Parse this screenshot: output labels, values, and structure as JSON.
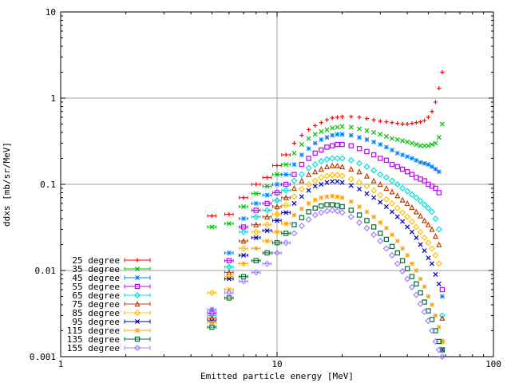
{
  "chart_data": {
    "type": "scatter",
    "title": "",
    "xlabel": "Emitted particle energy [MeV]",
    "ylabel": "ddxs [mb/sr/MeV]",
    "xscale": "log",
    "yscale": "log",
    "xlim": [
      1,
      100
    ],
    "ylim": [
      0.001,
      10
    ],
    "xticks": [
      1,
      10,
      100
    ],
    "xtick_labels": [
      "1",
      "10",
      "100"
    ],
    "yticks": [
      0.001,
      0.01,
      0.1,
      1,
      10
    ],
    "ytick_labels": [
      "0.001",
      "0.01",
      "0.1",
      "1",
      "10"
    ],
    "grid": true,
    "legend_position": "bottom-left",
    "x": [
      5.0,
      6.0,
      7.0,
      8.0,
      9.0,
      10.0,
      11.0,
      12.0,
      13.0,
      14.0,
      15.0,
      16.0,
      17.0,
      18.0,
      19.0,
      20.0,
      22.0,
      24.0,
      26.0,
      28.0,
      30.0,
      32.0,
      34.0,
      36.0,
      38.0,
      40.0,
      42.0,
      44.0,
      46.0,
      48.0,
      50.0,
      52.0,
      54.0,
      56.0,
      58.0
    ],
    "series": [
      {
        "name": "25 degree",
        "color": "#ff0000",
        "marker": "plus",
        "values": [
          0.043,
          0.045,
          0.07,
          0.1,
          0.12,
          0.165,
          0.22,
          0.3,
          0.37,
          0.43,
          0.48,
          0.52,
          0.56,
          0.59,
          0.6,
          0.61,
          0.61,
          0.6,
          0.58,
          0.56,
          0.54,
          0.53,
          0.52,
          0.51,
          0.5,
          0.5,
          0.51,
          0.52,
          0.53,
          0.55,
          0.6,
          0.7,
          0.9,
          1.3,
          2.0
        ]
      },
      {
        "name": "35 degree",
        "color": "#00c000",
        "marker": "cross",
        "values": [
          0.032,
          0.035,
          0.055,
          0.078,
          0.095,
          0.13,
          0.17,
          0.23,
          0.29,
          0.34,
          0.38,
          0.41,
          0.43,
          0.45,
          0.46,
          0.47,
          0.46,
          0.44,
          0.42,
          0.4,
          0.38,
          0.36,
          0.34,
          0.33,
          0.32,
          0.31,
          0.3,
          0.29,
          0.28,
          0.28,
          0.28,
          0.29,
          0.3,
          0.35,
          0.5
        ]
      },
      {
        "name": "45 degree",
        "color": "#0080ff",
        "marker": "asterisk",
        "values": [
          0.0035,
          0.016,
          0.04,
          0.06,
          0.075,
          0.1,
          0.13,
          0.17,
          0.22,
          0.26,
          0.3,
          0.33,
          0.35,
          0.37,
          0.38,
          0.38,
          0.37,
          0.35,
          0.33,
          0.31,
          0.29,
          0.27,
          0.25,
          0.23,
          0.22,
          0.21,
          0.2,
          0.19,
          0.18,
          0.175,
          0.17,
          0.16,
          0.15,
          0.14,
          0.005
        ]
      },
      {
        "name": "55 degree",
        "color": "#c000ff",
        "marker": "square",
        "values": [
          0.0032,
          0.013,
          0.032,
          0.05,
          0.06,
          0.08,
          0.1,
          0.13,
          0.17,
          0.2,
          0.23,
          0.25,
          0.27,
          0.28,
          0.29,
          0.29,
          0.28,
          0.26,
          0.24,
          0.22,
          0.2,
          0.19,
          0.17,
          0.16,
          0.15,
          0.14,
          0.13,
          0.12,
          0.115,
          0.11,
          0.1,
          0.095,
          0.09,
          0.08,
          0.006
        ]
      },
      {
        "name": "65 degree",
        "color": "#00e0e0",
        "marker": "diamond",
        "values": [
          0.003,
          0.011,
          0.028,
          0.042,
          0.05,
          0.065,
          0.085,
          0.11,
          0.13,
          0.155,
          0.17,
          0.185,
          0.195,
          0.2,
          0.2,
          0.2,
          0.19,
          0.175,
          0.16,
          0.145,
          0.13,
          0.12,
          0.11,
          0.1,
          0.09,
          0.083,
          0.076,
          0.07,
          0.064,
          0.058,
          0.053,
          0.048,
          0.04,
          0.03,
          0.003
        ]
      },
      {
        "name": "75 degree",
        "color": "#c04000",
        "marker": "triangle",
        "values": [
          0.0028,
          0.0095,
          0.022,
          0.034,
          0.042,
          0.055,
          0.07,
          0.09,
          0.11,
          0.13,
          0.14,
          0.15,
          0.16,
          0.165,
          0.165,
          0.16,
          0.15,
          0.14,
          0.125,
          0.11,
          0.1,
          0.09,
          0.082,
          0.074,
          0.066,
          0.06,
          0.054,
          0.048,
          0.043,
          0.038,
          0.034,
          0.03,
          0.025,
          0.02,
          0.0028
        ]
      },
      {
        "name": "85 degree",
        "color": "#ffc000",
        "marker": "diamond",
        "values": [
          0.0055,
          0.0085,
          0.018,
          0.028,
          0.034,
          0.045,
          0.057,
          0.072,
          0.088,
          0.1,
          0.11,
          0.12,
          0.125,
          0.128,
          0.128,
          0.125,
          0.115,
          0.105,
          0.095,
          0.085,
          0.075,
          0.067,
          0.06,
          0.053,
          0.047,
          0.042,
          0.037,
          0.032,
          0.028,
          0.024,
          0.021,
          0.018,
          0.015,
          0.012,
          0.0015
        ]
      },
      {
        "name": "95 degree",
        "color": "#0000c0",
        "marker": "cross",
        "values": [
          0.0026,
          0.008,
          0.015,
          0.024,
          0.029,
          0.038,
          0.047,
          0.06,
          0.072,
          0.085,
          0.095,
          0.1,
          0.105,
          0.108,
          0.108,
          0.105,
          0.097,
          0.088,
          0.078,
          0.07,
          0.062,
          0.055,
          0.048,
          0.042,
          0.037,
          0.032,
          0.028,
          0.024,
          0.02,
          0.017,
          0.014,
          0.012,
          0.009,
          0.007,
          0.0012
        ]
      },
      {
        "name": "115 degree",
        "color": "#ffa000",
        "marker": "asterisk",
        "values": [
          0.0025,
          0.006,
          0.012,
          0.018,
          0.022,
          0.028,
          0.035,
          0.044,
          0.052,
          0.06,
          0.066,
          0.07,
          0.072,
          0.073,
          0.072,
          0.07,
          0.063,
          0.055,
          0.048,
          0.042,
          0.036,
          0.031,
          0.026,
          0.022,
          0.018,
          0.015,
          0.012,
          0.01,
          0.008,
          0.0065,
          0.005,
          0.004,
          0.003,
          0.0022,
          0.0015
        ]
      },
      {
        "name": "135 degree",
        "color": "#007030",
        "marker": "square",
        "values": [
          0.0022,
          0.0048,
          0.0085,
          0.013,
          0.016,
          0.021,
          0.027,
          0.034,
          0.041,
          0.048,
          0.053,
          0.056,
          0.058,
          0.058,
          0.057,
          0.055,
          0.05,
          0.044,
          0.038,
          0.032,
          0.027,
          0.023,
          0.019,
          0.016,
          0.013,
          0.0105,
          0.0085,
          0.007,
          0.0055,
          0.0043,
          0.0034,
          0.0027,
          0.002,
          0.0015,
          0.0012
        ]
      },
      {
        "name": "155 degree",
        "color": "#a080ff",
        "marker": "diamond",
        "values": [
          0.0035,
          0.0055,
          0.0075,
          0.0095,
          0.012,
          0.016,
          0.021,
          0.027,
          0.033,
          0.039,
          0.044,
          0.047,
          0.049,
          0.05,
          0.049,
          0.047,
          0.042,
          0.036,
          0.031,
          0.026,
          0.022,
          0.018,
          0.015,
          0.012,
          0.0098,
          0.008,
          0.0064,
          0.0052,
          0.0041,
          0.0033,
          0.0026,
          0.002,
          0.0015,
          0.0012,
          0.001
        ]
      }
    ]
  }
}
